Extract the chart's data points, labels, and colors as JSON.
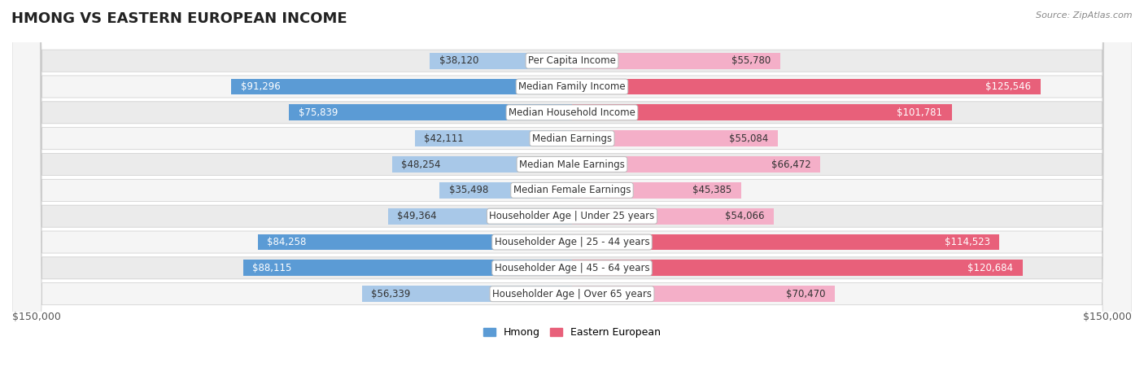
{
  "title": "HMONG VS EASTERN EUROPEAN INCOME",
  "source": "Source: ZipAtlas.com",
  "categories": [
    "Per Capita Income",
    "Median Family Income",
    "Median Household Income",
    "Median Earnings",
    "Median Male Earnings",
    "Median Female Earnings",
    "Householder Age | Under 25 years",
    "Householder Age | 25 - 44 years",
    "Householder Age | 45 - 64 years",
    "Householder Age | Over 65 years"
  ],
  "hmong_values": [
    38120,
    91296,
    75839,
    42111,
    48254,
    35498,
    49364,
    84258,
    88115,
    56339
  ],
  "eastern_values": [
    55780,
    125546,
    101781,
    55084,
    66472,
    45385,
    54066,
    114523,
    120684,
    70470
  ],
  "hmong_labels": [
    "$38,120",
    "$91,296",
    "$75,839",
    "$42,111",
    "$48,254",
    "$35,498",
    "$49,364",
    "$84,258",
    "$88,115",
    "$56,339"
  ],
  "eastern_labels": [
    "$55,780",
    "$125,546",
    "$101,781",
    "$55,084",
    "$66,472",
    "$45,385",
    "$54,066",
    "$114,523",
    "$120,684",
    "$70,470"
  ],
  "hmong_color_light": "#a8c8e8",
  "hmong_color_dark": "#5b9bd5",
  "eastern_color_light": "#f4afc8",
  "eastern_color_dark": "#e8607a",
  "max_value": 150000,
  "legend_hmong": "Hmong",
  "legend_eastern": "Eastern European",
  "xlabel_left": "$150,000",
  "xlabel_right": "$150,000",
  "row_bg_odd": "#ebebeb",
  "row_bg_even": "#f5f5f5",
  "title_fontsize": 13,
  "label_fontsize": 8.5,
  "category_fontsize": 8.5,
  "hmong_threshold": 70000,
  "eastern_threshold": 90000
}
